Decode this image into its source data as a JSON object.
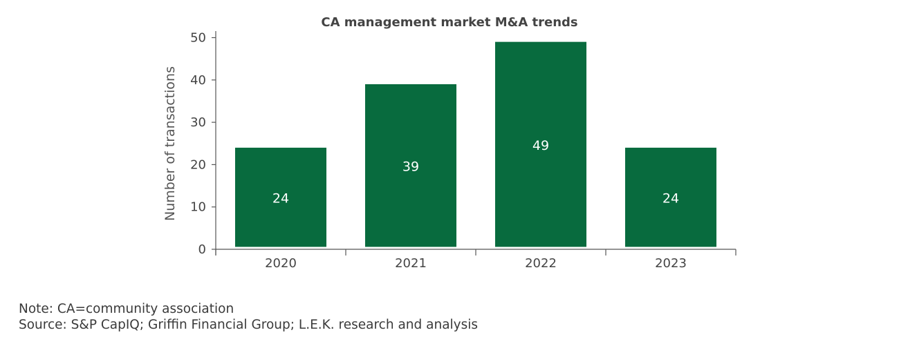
{
  "chart_data": {
    "type": "bar",
    "title": "CA management market M&A trends",
    "xlabel": "",
    "ylabel": "Number of transactions",
    "categories": [
      "2020",
      "2021",
      "2022",
      "2023"
    ],
    "values": [
      24,
      39,
      49,
      24
    ],
    "data_labels": [
      "24",
      "39",
      "49",
      "24"
    ],
    "yticks": [
      "0",
      "10",
      "20",
      "30",
      "40",
      "50"
    ],
    "ylim": [
      0,
      50
    ],
    "grid": false,
    "bar_color": "#086B3E"
  },
  "footer": {
    "note": "Note: CA=community association",
    "source": "Source: S&P CapIQ; Griffin Financial Group; L.E.K. research and analysis"
  }
}
